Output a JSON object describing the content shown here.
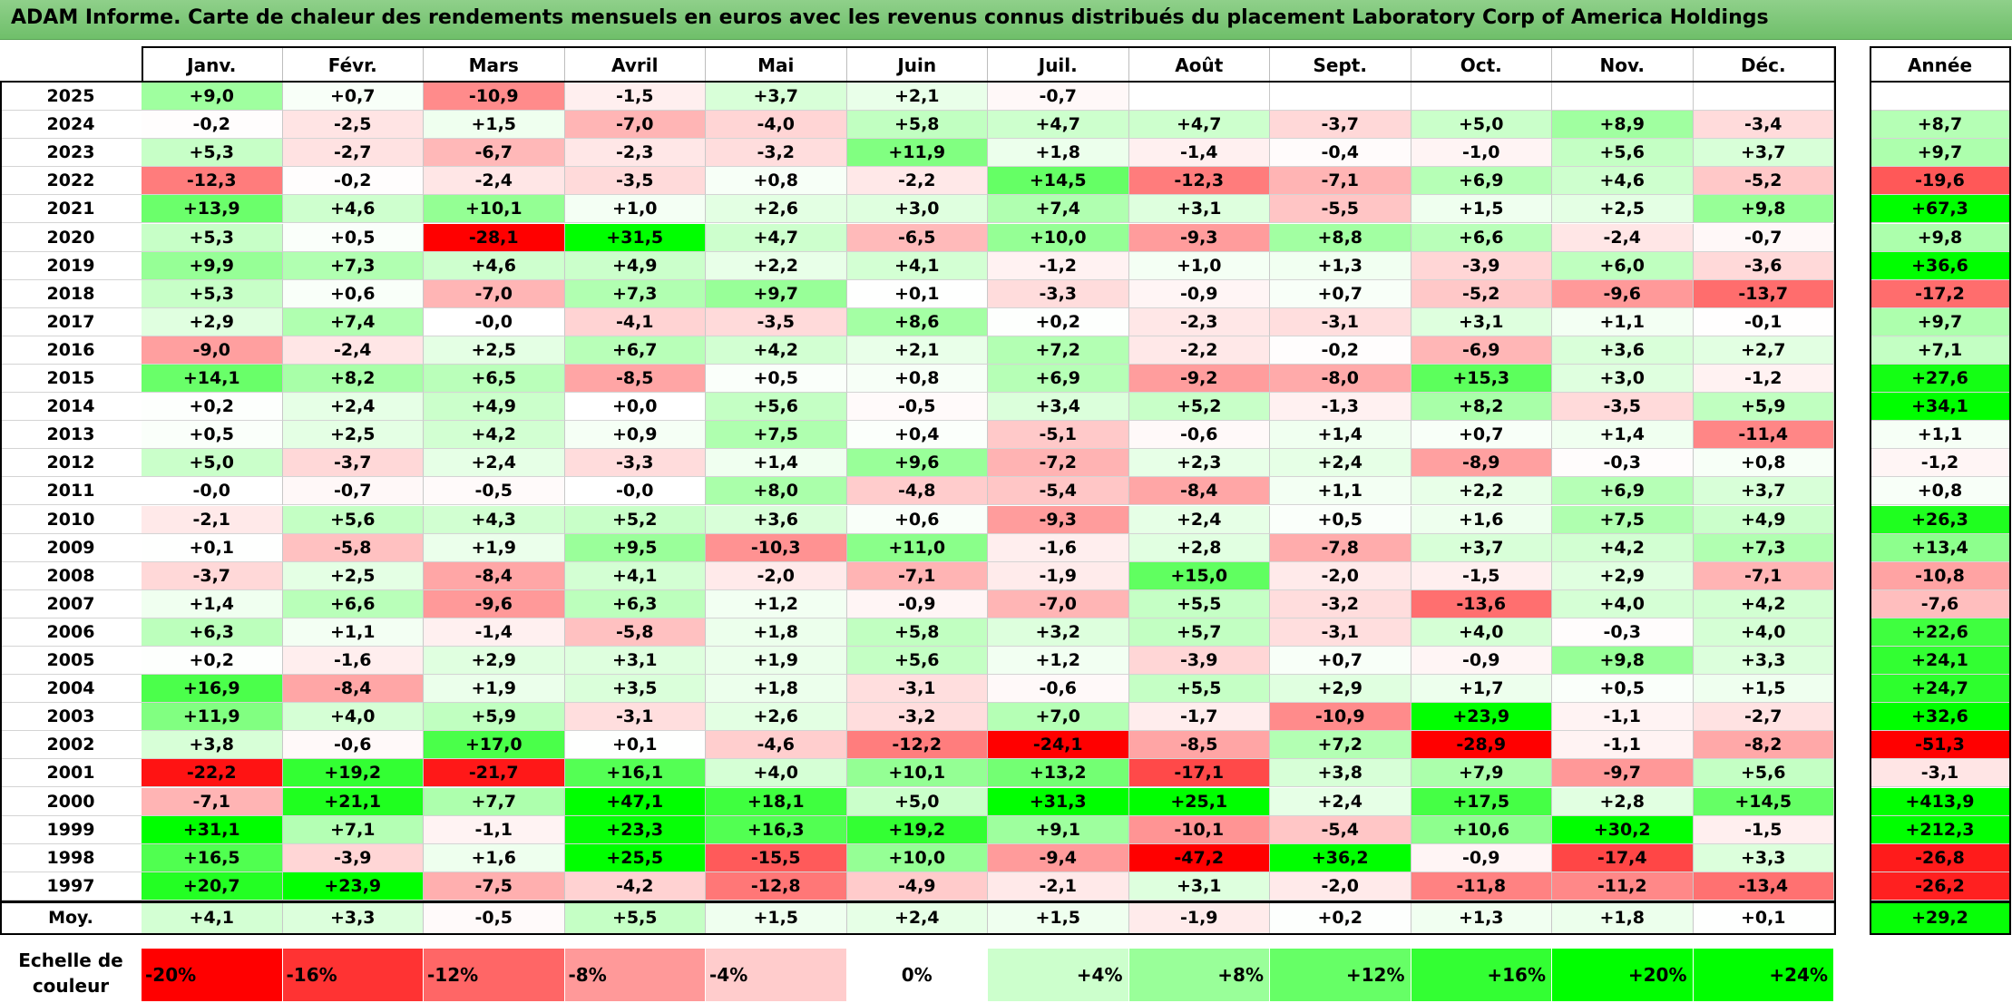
{
  "title": "ADAM Informe. Carte de chaleur des rendements mensuels en euros avec les revenus connus distribués du placement Laboratory Corp of America Holdings",
  "chart_data": {
    "type": "heatmap",
    "title": "ADAM Informe. Carte de chaleur des rendements mensuels en euros avec les revenus connus distribués du placement Laboratory Corp of America Holdings",
    "months": [
      "Janv.",
      "Févr.",
      "Mars",
      "Avril",
      "Mai",
      "Juin",
      "Juil.",
      "Août",
      "Sept.",
      "Oct.",
      "Nov.",
      "Déc."
    ],
    "year_header": "Année",
    "rows": [
      {
        "year": "2025",
        "values": [
          "+9,0",
          "+0,7",
          "-10,9",
          "-1,5",
          "+3,7",
          "+2,1",
          "-0,7",
          "",
          "",
          "",
          "",
          ""
        ],
        "annual": ""
      },
      {
        "year": "2024",
        "values": [
          "-0,2",
          "-2,5",
          "+1,5",
          "-7,0",
          "-4,0",
          "+5,8",
          "+4,7",
          "+4,7",
          "-3,7",
          "+5,0",
          "+8,9",
          "-3,4"
        ],
        "annual": "+8,7"
      },
      {
        "year": "2023",
        "values": [
          "+5,3",
          "-2,7",
          "-6,7",
          "-2,3",
          "-3,2",
          "+11,9",
          "+1,8",
          "-1,4",
          "-0,4",
          "-1,0",
          "+5,6",
          "+3,7"
        ],
        "annual": "+9,7"
      },
      {
        "year": "2022",
        "values": [
          "-12,3",
          "-0,2",
          "-2,4",
          "-3,5",
          "+0,8",
          "-2,2",
          "+14,5",
          "-12,3",
          "-7,1",
          "+6,9",
          "+4,6",
          "-5,2"
        ],
        "annual": "-19,6"
      },
      {
        "year": "2021",
        "values": [
          "+13,9",
          "+4,6",
          "+10,1",
          "+1,0",
          "+2,6",
          "+3,0",
          "+7,4",
          "+3,1",
          "-5,5",
          "+1,5",
          "+2,5",
          "+9,8"
        ],
        "annual": "+67,3"
      },
      {
        "year": "2020",
        "values": [
          "+5,3",
          "+0,5",
          "-28,1",
          "+31,5",
          "+4,7",
          "-6,5",
          "+10,0",
          "-9,3",
          "+8,8",
          "+6,6",
          "-2,4",
          "-0,7"
        ],
        "annual": "+9,8"
      },
      {
        "year": "2019",
        "values": [
          "+9,9",
          "+7,3",
          "+4,6",
          "+4,9",
          "+2,2",
          "+4,1",
          "-1,2",
          "+1,0",
          "+1,3",
          "-3,9",
          "+6,0",
          "-3,6"
        ],
        "annual": "+36,6"
      },
      {
        "year": "2018",
        "values": [
          "+5,3",
          "+0,6",
          "-7,0",
          "+7,3",
          "+9,7",
          "+0,1",
          "-3,3",
          "-0,9",
          "+0,7",
          "-5,2",
          "-9,6",
          "-13,7"
        ],
        "annual": "-17,2"
      },
      {
        "year": "2017",
        "values": [
          "+2,9",
          "+7,4",
          "-0,0",
          "-4,1",
          "-3,5",
          "+8,6",
          "+0,2",
          "-2,3",
          "-3,1",
          "+3,1",
          "+1,1",
          "-0,1"
        ],
        "annual": "+9,7"
      },
      {
        "year": "2016",
        "values": [
          "-9,0",
          "-2,4",
          "+2,5",
          "+6,7",
          "+4,2",
          "+2,1",
          "+7,2",
          "-2,2",
          "-0,2",
          "-6,9",
          "+3,6",
          "+2,7"
        ],
        "annual": "+7,1"
      },
      {
        "year": "2015",
        "values": [
          "+14,1",
          "+8,2",
          "+6,5",
          "-8,5",
          "+0,5",
          "+0,8",
          "+6,9",
          "-9,2",
          "-8,0",
          "+15,3",
          "+3,0",
          "-1,2"
        ],
        "annual": "+27,6"
      },
      {
        "year": "2014",
        "values": [
          "+0,2",
          "+2,4",
          "+4,9",
          "+0,0",
          "+5,6",
          "-0,5",
          "+3,4",
          "+5,2",
          "-1,3",
          "+8,2",
          "-3,5",
          "+5,9"
        ],
        "annual": "+34,1"
      },
      {
        "year": "2013",
        "values": [
          "+0,5",
          "+2,5",
          "+4,2",
          "+0,9",
          "+7,5",
          "+0,4",
          "-5,1",
          "-0,6",
          "+1,4",
          "+0,7",
          "+1,4",
          "-11,4"
        ],
        "annual": "+1,1"
      },
      {
        "year": "2012",
        "values": [
          "+5,0",
          "-3,7",
          "+2,4",
          "-3,3",
          "+1,4",
          "+9,6",
          "-7,2",
          "+2,3",
          "+2,4",
          "-8,9",
          "-0,3",
          "+0,8"
        ],
        "annual": "-1,2"
      },
      {
        "year": "2011",
        "values": [
          "-0,0",
          "-0,7",
          "-0,5",
          "-0,0",
          "+8,0",
          "-4,8",
          "-5,4",
          "-8,4",
          "+1,1",
          "+2,2",
          "+6,9",
          "+3,7"
        ],
        "annual": "+0,8"
      },
      {
        "year": "2010",
        "values": [
          "-2,1",
          "+5,6",
          "+4,3",
          "+5,2",
          "+3,6",
          "+0,6",
          "-9,3",
          "+2,4",
          "+0,5",
          "+1,6",
          "+7,5",
          "+4,9"
        ],
        "annual": "+26,3"
      },
      {
        "year": "2009",
        "values": [
          "+0,1",
          "-5,8",
          "+1,9",
          "+9,5",
          "-10,3",
          "+11,0",
          "-1,6",
          "+2,8",
          "-7,8",
          "+3,7",
          "+4,2",
          "+7,3"
        ],
        "annual": "+13,4"
      },
      {
        "year": "2008",
        "values": [
          "-3,7",
          "+2,5",
          "-8,4",
          "+4,1",
          "-2,0",
          "-7,1",
          "-1,9",
          "+15,0",
          "-2,0",
          "-1,5",
          "+2,9",
          "-7,1"
        ],
        "annual": "-10,8"
      },
      {
        "year": "2007",
        "values": [
          "+1,4",
          "+6,6",
          "-9,6",
          "+6,3",
          "+1,2",
          "-0,9",
          "-7,0",
          "+5,5",
          "-3,2",
          "-13,6",
          "+4,0",
          "+4,2"
        ],
        "annual": "-7,6"
      },
      {
        "year": "2006",
        "values": [
          "+6,3",
          "+1,1",
          "-1,4",
          "-5,8",
          "+1,8",
          "+5,8",
          "+3,2",
          "+5,7",
          "-3,1",
          "+4,0",
          "-0,3",
          "+4,0"
        ],
        "annual": "+22,6"
      },
      {
        "year": "2005",
        "values": [
          "+0,2",
          "-1,6",
          "+2,9",
          "+3,1",
          "+1,9",
          "+5,6",
          "+1,2",
          "-3,9",
          "+0,7",
          "-0,9",
          "+9,8",
          "+3,3"
        ],
        "annual": "+24,1"
      },
      {
        "year": "2004",
        "values": [
          "+16,9",
          "-8,4",
          "+1,9",
          "+3,5",
          "+1,8",
          "-3,1",
          "-0,6",
          "+5,5",
          "+2,9",
          "+1,7",
          "+0,5",
          "+1,5"
        ],
        "annual": "+24,7"
      },
      {
        "year": "2003",
        "values": [
          "+11,9",
          "+4,0",
          "+5,9",
          "-3,1",
          "+2,6",
          "-3,2",
          "+7,0",
          "-1,7",
          "-10,9",
          "+23,9",
          "-1,1",
          "-2,7"
        ],
        "annual": "+32,6"
      },
      {
        "year": "2002",
        "values": [
          "+3,8",
          "-0,6",
          "+17,0",
          "+0,1",
          "-4,6",
          "-12,2",
          "-24,1",
          "-8,5",
          "+7,2",
          "-28,9",
          "-1,1",
          "-8,2"
        ],
        "annual": "-51,3"
      },
      {
        "year": "2001",
        "values": [
          "-22,2",
          "+19,2",
          "-21,7",
          "+16,1",
          "+4,0",
          "+10,1",
          "+13,2",
          "-17,1",
          "+3,8",
          "+7,9",
          "-9,7",
          "+5,6"
        ],
        "annual": "-3,1"
      },
      {
        "year": "2000",
        "values": [
          "-7,1",
          "+21,1",
          "+7,7",
          "+47,1",
          "+18,1",
          "+5,0",
          "+31,3",
          "+25,1",
          "+2,4",
          "+17,5",
          "+2,8",
          "+14,5"
        ],
        "annual": "+413,9"
      },
      {
        "year": "1999",
        "values": [
          "+31,1",
          "+7,1",
          "-1,1",
          "+23,3",
          "+16,3",
          "+19,2",
          "+9,1",
          "-10,1",
          "-5,4",
          "+10,6",
          "+30,2",
          "-1,5"
        ],
        "annual": "+212,3"
      },
      {
        "year": "1998",
        "values": [
          "+16,5",
          "-3,9",
          "+1,6",
          "+25,5",
          "-15,5",
          "+10,0",
          "-9,4",
          "-47,2",
          "+36,2",
          "-0,9",
          "-17,4",
          "+3,3"
        ],
        "annual": "-26,8"
      },
      {
        "year": "1997",
        "values": [
          "+20,7",
          "+23,9",
          "-7,5",
          "-4,2",
          "-12,8",
          "-4,9",
          "-2,1",
          "+3,1",
          "-2,0",
          "-11,8",
          "-11,2",
          "-13,4"
        ],
        "annual": "-26,2"
      }
    ],
    "average_label": "Moy.",
    "average_values": [
      "+4,1",
      "+3,3",
      "-0,5",
      "+5,5",
      "+1,5",
      "+2,4",
      "+1,5",
      "-1,9",
      "+0,2",
      "+1,3",
      "+1,8",
      "+0,1"
    ],
    "average_annual": "+29,2",
    "scale_label_line1": "Echelle de",
    "scale_label_line2": "couleur",
    "scale": [
      {
        "label": "-20%",
        "value": -20
      },
      {
        "label": "-16%",
        "value": -16
      },
      {
        "label": "-12%",
        "value": -12
      },
      {
        "label": "-8%",
        "value": -8
      },
      {
        "label": "-4%",
        "value": -4
      },
      {
        "label": "0%",
        "value": 0
      },
      {
        "label": "+4%",
        "value": 4
      },
      {
        "label": "+8%",
        "value": 8
      },
      {
        "label": "+12%",
        "value": 12
      },
      {
        "label": "+16%",
        "value": 16
      },
      {
        "label": "+20%",
        "value": 20
      },
      {
        "label": "+24%",
        "value": 24
      }
    ],
    "colors": {
      "negative_max": "#ff0000",
      "neutral": "#ffffff",
      "positive_max": "#00ff00"
    }
  }
}
